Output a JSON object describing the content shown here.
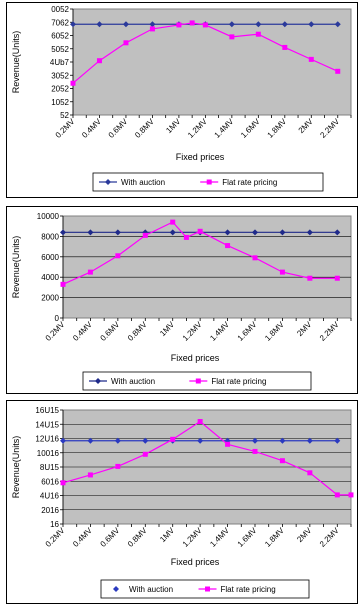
{
  "chart_data": [
    {
      "type": "line",
      "ylabel": "Revenue(Units)",
      "xlabel": "Fixed prices",
      "categories": [
        "0.2MV",
        "0.4MV",
        "0.6MV",
        "0.8MV",
        "1MV",
        "1.2MV",
        "1.4MV",
        "1.6MV",
        "1.8MV",
        "2MV",
        "2.2MV"
      ],
      "x": [
        0.2,
        0.3,
        0.4,
        0.5,
        0.6,
        0.7,
        0.8,
        0.9,
        1.0,
        1.1,
        1.2,
        1.3,
        1.4,
        1.5,
        1.6,
        1.7,
        1.8,
        1.9,
        2.0,
        2.1,
        2.2,
        2.3
      ],
      "yticks": [
        "52",
        "1052",
        "2052",
        "3052",
        "4052",
        "5052",
        "6052",
        "7052",
        "8052"
      ],
      "yticks_display": [
        "52",
        "1052",
        "2052",
        "3052",
        "4Ub7",
        "5052",
        "6052",
        "7062",
        "0052"
      ],
      "ylim": [
        52,
        8052
      ],
      "series": [
        {
          "name": "With auction",
          "marker": "diamond",
          "color": "#2b3a9b",
          "x": [
            0.2,
            0.4,
            0.6,
            0.8,
            1.0,
            1.2,
            1.4,
            1.6,
            1.8,
            2.0,
            2.2
          ],
          "values": [
            6900,
            6900,
            6900,
            6900,
            6900,
            6900,
            6900,
            6900,
            6900,
            6900,
            6900
          ]
        },
        {
          "name": "Flat rate pricing",
          "marker": "square",
          "color": "#ff00ff",
          "x": [
            0.2,
            0.4,
            0.6,
            0.8,
            1.0,
            1.1,
            1.2,
            1.4,
            1.6,
            1.8,
            2.0,
            2.2
          ],
          "values": [
            2450,
            4150,
            5500,
            6550,
            6850,
            7000,
            6850,
            5950,
            6150,
            5150,
            4250,
            3350
          ]
        }
      ],
      "grid": false,
      "legend": "bottom"
    },
    {
      "type": "line",
      "ylabel": "Revenue(Units)",
      "xlabel": "Fixed prices",
      "categories": [
        "0.2MV",
        "0.4MV",
        "0.6MV",
        "0.8MV",
        "1MV",
        "1.2MV",
        "1.4MV",
        "1.6MV",
        "1.8MV",
        "2MV",
        "2.2MV"
      ],
      "x": [
        0.2,
        0.3,
        0.4,
        0.5,
        0.6,
        0.7,
        0.8,
        0.9,
        1.0,
        1.1,
        1.2,
        1.3,
        1.4,
        1.5,
        1.6,
        1.7,
        1.8,
        1.9,
        2.0,
        2.1,
        2.2,
        2.3
      ],
      "yticks": [
        "0",
        "2000",
        "4000",
        "6000",
        "8000",
        "10000"
      ],
      "yticks_display": [
        "0",
        "2000",
        "4000",
        "6000",
        "8000",
        "10000"
      ],
      "ylim": [
        0,
        10000
      ],
      "series": [
        {
          "name": "With auction",
          "marker": "diamond",
          "color": "#1f2a8a",
          "x": [
            0.2,
            0.4,
            0.6,
            0.8,
            1.0,
            1.2,
            1.4,
            1.6,
            1.8,
            2.0,
            2.2
          ],
          "values": [
            8400,
            8400,
            8400,
            8400,
            8400,
            8400,
            8400,
            8400,
            8400,
            8400,
            8400
          ]
        },
        {
          "name": "Flat rate pricing",
          "marker": "square",
          "color": "#ff00ff",
          "x": [
            0.2,
            0.4,
            0.6,
            0.8,
            1.0,
            1.1,
            1.2,
            1.4,
            1.6,
            1.8,
            2.0,
            2.2
          ],
          "values": [
            3300,
            4500,
            6100,
            8100,
            9400,
            7900,
            8500,
            7100,
            5900,
            4500,
            3900,
            3900
          ]
        }
      ],
      "grid": true,
      "legend": "bottom"
    },
    {
      "type": "line",
      "ylabel": "Revenue(Units)",
      "xlabel": "Fixed prices",
      "categories": [
        "0.2MV",
        "0.4MV",
        "0.6MV",
        "0.8MV",
        "1MV",
        "1.2MV",
        "1.4MV",
        "1.6MV",
        "1.8MV",
        "2MV",
        "2.2MV"
      ],
      "x": [
        0.2,
        0.3,
        0.4,
        0.5,
        0.6,
        0.7,
        0.8,
        0.9,
        1.0,
        1.1,
        1.2,
        1.3,
        1.4,
        1.5,
        1.6,
        1.7,
        1.8,
        1.9,
        2.0,
        2.1,
        2.2,
        2.3
      ],
      "yticks": [
        "16",
        "2016",
        "4016",
        "6016",
        "8016",
        "10016",
        "12016",
        "14016",
        "16016"
      ],
      "yticks_display": [
        "16",
        "2016",
        "4U16",
        "6016",
        "8U15",
        "10016",
        "12U16",
        "14U15",
        "16U15"
      ],
      "ylim": [
        16,
        16016
      ],
      "series": [
        {
          "name": "With auction",
          "marker": "diamond",
          "color": "#2b3ac0",
          "x": [
            0.2,
            0.4,
            0.6,
            0.8,
            1.0,
            1.2,
            1.4,
            1.6,
            1.8,
            2.0,
            2.2
          ],
          "values": [
            11700,
            11700,
            11700,
            11700,
            11700,
            11700,
            11700,
            11700,
            11700,
            11700,
            11700
          ]
        },
        {
          "name": "Flat rate pricing",
          "marker": "square",
          "color": "#ff00ff",
          "x": [
            0.2,
            0.4,
            0.6,
            0.8,
            1.0,
            1.2,
            1.4,
            1.6,
            1.8,
            2.0,
            2.2,
            2.3
          ],
          "values": [
            5800,
            6900,
            8100,
            9800,
            11900,
            14400,
            11200,
            10200,
            8900,
            7200,
            4100,
            4100
          ]
        }
      ],
      "grid": true,
      "legend": "bottom"
    }
  ]
}
